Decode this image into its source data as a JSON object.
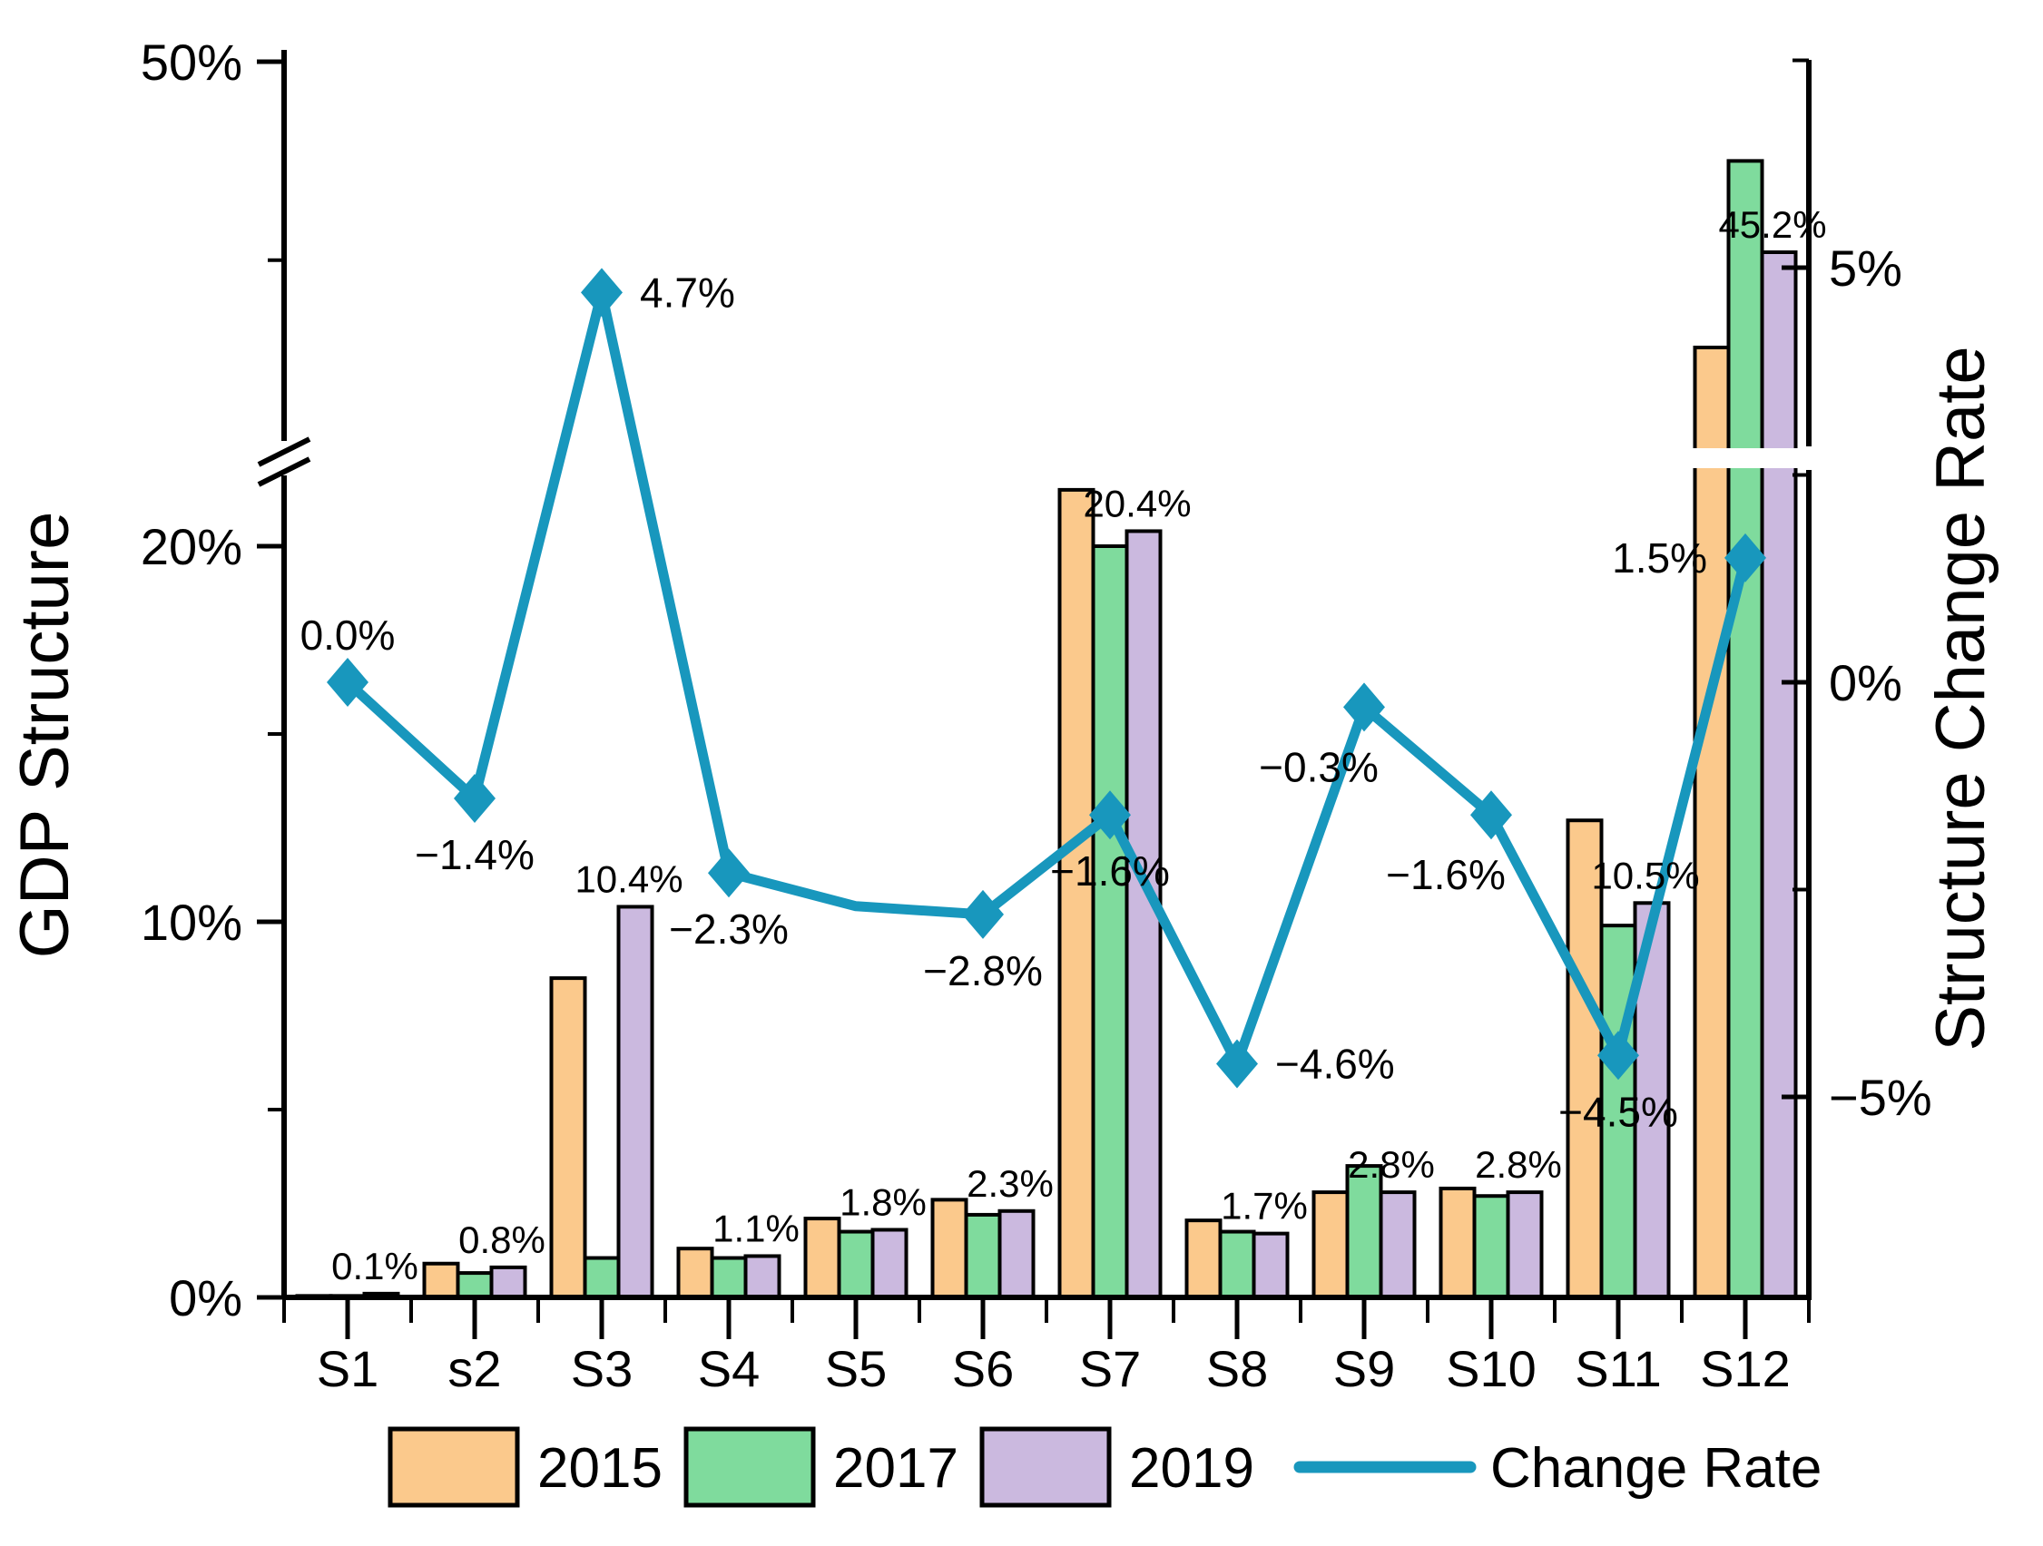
{
  "figure_background": "#ffffff",
  "colors": {
    "bar_2015": "#FBC98C",
    "bar_2017": "#7FDB9D",
    "bar_2019": "#CBB9DF",
    "line": "#1897BD",
    "axis": "#000000",
    "text": "#000000",
    "bar_border": "#000000",
    "break_band": "#ffffff"
  },
  "legend": {
    "items": [
      {
        "type": "swatch",
        "label": "2015",
        "color": "#FBC98C"
      },
      {
        "type": "swatch",
        "label": "2017",
        "color": "#7FDB9D"
      },
      {
        "type": "swatch",
        "label": "2019",
        "color": "#CBB9DF"
      },
      {
        "type": "line",
        "label": "Change Rate",
        "color": "#1897BD"
      }
    ]
  },
  "chart_data": {
    "type": "bar",
    "subtype": "grouped-bars-with-line-dual-axis-broken-left-axis",
    "categories": [
      "S1",
      "s2",
      "S3",
      "S4",
      "S5",
      "S6",
      "S7",
      "S8",
      "S9",
      "S10",
      "S11",
      "S12"
    ],
    "bar_series": [
      {
        "name": "2015",
        "axis": "left",
        "color": "#FBC98C",
        "values": [
          0.04,
          0.9,
          8.5,
          1.3,
          2.1,
          2.6,
          21.5,
          2.05,
          2.8,
          2.9,
          12.7,
          42.8
        ]
      },
      {
        "name": "2017",
        "axis": "left",
        "color": "#7FDB9D",
        "values": [
          0.04,
          0.65,
          1.05,
          1.05,
          1.75,
          2.2,
          20.0,
          1.75,
          3.5,
          2.7,
          9.9,
          47.5
        ]
      },
      {
        "name": "2019",
        "axis": "left",
        "color": "#CBB9DF",
        "values": [
          0.1,
          0.8,
          10.4,
          1.1,
          1.8,
          2.3,
          20.4,
          1.7,
          2.8,
          2.8,
          10.5,
          45.2
        ],
        "value_labels": [
          "0.1%",
          "0.8%",
          "10.4%",
          "1.1%",
          "1.8%",
          "2.3%",
          "20.4%",
          "1.7%",
          "2.8%",
          "2.8%",
          "10.5%",
          "45.2%"
        ]
      }
    ],
    "line_series": {
      "name": "Change Rate",
      "axis": "right",
      "color": "#1897BD",
      "values": [
        0.0,
        -1.4,
        4.7,
        -2.3,
        -2.7,
        -2.8,
        -1.6,
        -4.6,
        -0.3,
        -1.6,
        -4.5,
        1.5
      ],
      "markers": [
        1,
        1,
        1,
        1,
        0,
        1,
        1,
        1,
        1,
        1,
        1,
        1
      ],
      "point_labels": [
        "0.0%",
        "−1.4%",
        "4.7%",
        "−2.3%",
        "",
        "−2.8%",
        "−1.6%",
        "−4.6%",
        "−0.3%",
        "−1.6%",
        "−4.5%",
        "1.5%"
      ],
      "label_pos": [
        "above",
        "below",
        "right",
        "below",
        "none",
        "below",
        "below",
        "right",
        "below-left",
        "below-left",
        "below",
        "left"
      ]
    },
    "left_axis": {
      "title": "GDP Structure",
      "major_ticks": [
        {
          "v": 0,
          "label": "0%"
        },
        {
          "v": 10,
          "label": "10%"
        },
        {
          "v": 20,
          "label": "20%"
        },
        {
          "v": 50,
          "label": "50%"
        }
      ],
      "minor_ticks": [
        5,
        15,
        45
      ],
      "break_from": 22.1,
      "break_to": 40.3
    },
    "right_axis": {
      "title": "Structure Change Rate",
      "major_ticks": [
        {
          "v": -5,
          "label": "−5%"
        },
        {
          "v": 0,
          "label": "0%"
        },
        {
          "v": 5,
          "label": "5%"
        }
      ],
      "minor_ticks": [
        -2.5,
        2.5,
        7.5
      ]
    },
    "x_axis": {
      "tick_labels": [
        "S1",
        "s2",
        "S3",
        "S4",
        "S5",
        "S6",
        "S7",
        "S8",
        "S9",
        "S10",
        "S11",
        "S12"
      ]
    },
    "grid": "off",
    "legend_position": "bottom-center"
  }
}
